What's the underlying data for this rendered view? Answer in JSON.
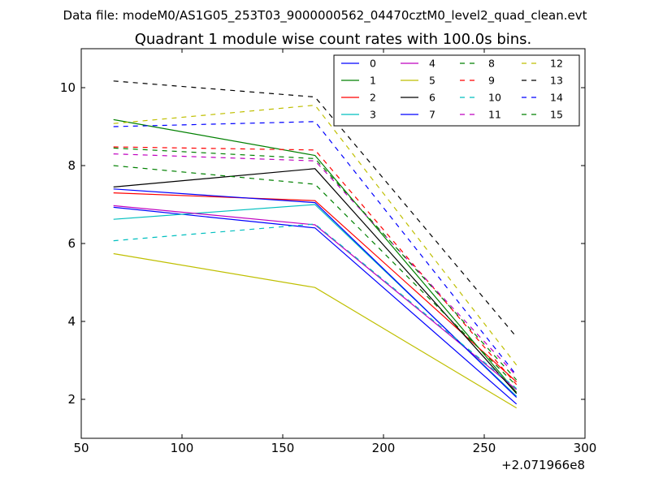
{
  "suptitle": "Data file: modeM0/AS1G05_253T03_9000000562_04470cztM0_level2_quad_clean.evt",
  "chart_data": {
    "type": "line",
    "title": "Quadrant 1 module wise count rates with 100.0s bins.",
    "xlabel": "",
    "ylabel": "",
    "x_offset_label": "+2.071966e8",
    "xlim": [
      50,
      300
    ],
    "ylim": [
      1,
      11
    ],
    "x_ticks": [
      50,
      100,
      150,
      200,
      250,
      300
    ],
    "x_tick_labels": [
      "50",
      "100",
      "150",
      "200",
      "250",
      "300"
    ],
    "y_ticks": [
      2,
      4,
      6,
      8,
      10
    ],
    "y_tick_labels": [
      "2",
      "4",
      "6",
      "8",
      "10"
    ],
    "legend_position": "top-right",
    "x": [
      66,
      166,
      266
    ],
    "series": [
      {
        "name": "0",
        "color": "#0000ff",
        "dash": "solid",
        "values": [
          6.93,
          6.4,
          1.88
        ]
      },
      {
        "name": "1",
        "color": "#008000",
        "dash": "solid",
        "values": [
          9.18,
          8.26,
          2.18
        ]
      },
      {
        "name": "2",
        "color": "#ff0000",
        "dash": "solid",
        "values": [
          7.3,
          7.1,
          2.45
        ]
      },
      {
        "name": "3",
        "color": "#00bfbf",
        "dash": "solid",
        "values": [
          6.62,
          7.0,
          2.08
        ]
      },
      {
        "name": "4",
        "color": "#bf00bf",
        "dash": "solid",
        "values": [
          6.97,
          6.48,
          2.25
        ]
      },
      {
        "name": "5",
        "color": "#bfbf00",
        "dash": "solid",
        "values": [
          5.74,
          4.87,
          1.78
        ]
      },
      {
        "name": "6",
        "color": "#000000",
        "dash": "solid",
        "values": [
          7.45,
          7.92,
          2.15
        ]
      },
      {
        "name": "7",
        "color": "#0000ff",
        "dash": "solid",
        "values": [
          7.4,
          7.05,
          2.05
        ]
      },
      {
        "name": "8",
        "color": "#008000",
        "dash": "dashed",
        "values": [
          8.0,
          7.52,
          2.35
        ]
      },
      {
        "name": "9",
        "color": "#ff0000",
        "dash": "dashed",
        "values": [
          8.48,
          8.4,
          2.38
        ]
      },
      {
        "name": "10",
        "color": "#00bfbf",
        "dash": "dashed",
        "values": [
          6.07,
          6.5,
          2.28
        ]
      },
      {
        "name": "11",
        "color": "#bf00bf",
        "dash": "dashed",
        "values": [
          8.3,
          8.12,
          2.6
        ]
      },
      {
        "name": "12",
        "color": "#bfbf00",
        "dash": "dashed",
        "values": [
          9.08,
          9.55,
          2.88
        ]
      },
      {
        "name": "13",
        "color": "#000000",
        "dash": "dashed",
        "values": [
          10.17,
          9.76,
          3.6
        ]
      },
      {
        "name": "14",
        "color": "#0000ff",
        "dash": "dashed",
        "values": [
          9.0,
          9.13,
          2.62
        ]
      },
      {
        "name": "15",
        "color": "#008000",
        "dash": "dashed",
        "values": [
          8.45,
          8.18,
          2.5
        ]
      }
    ]
  }
}
